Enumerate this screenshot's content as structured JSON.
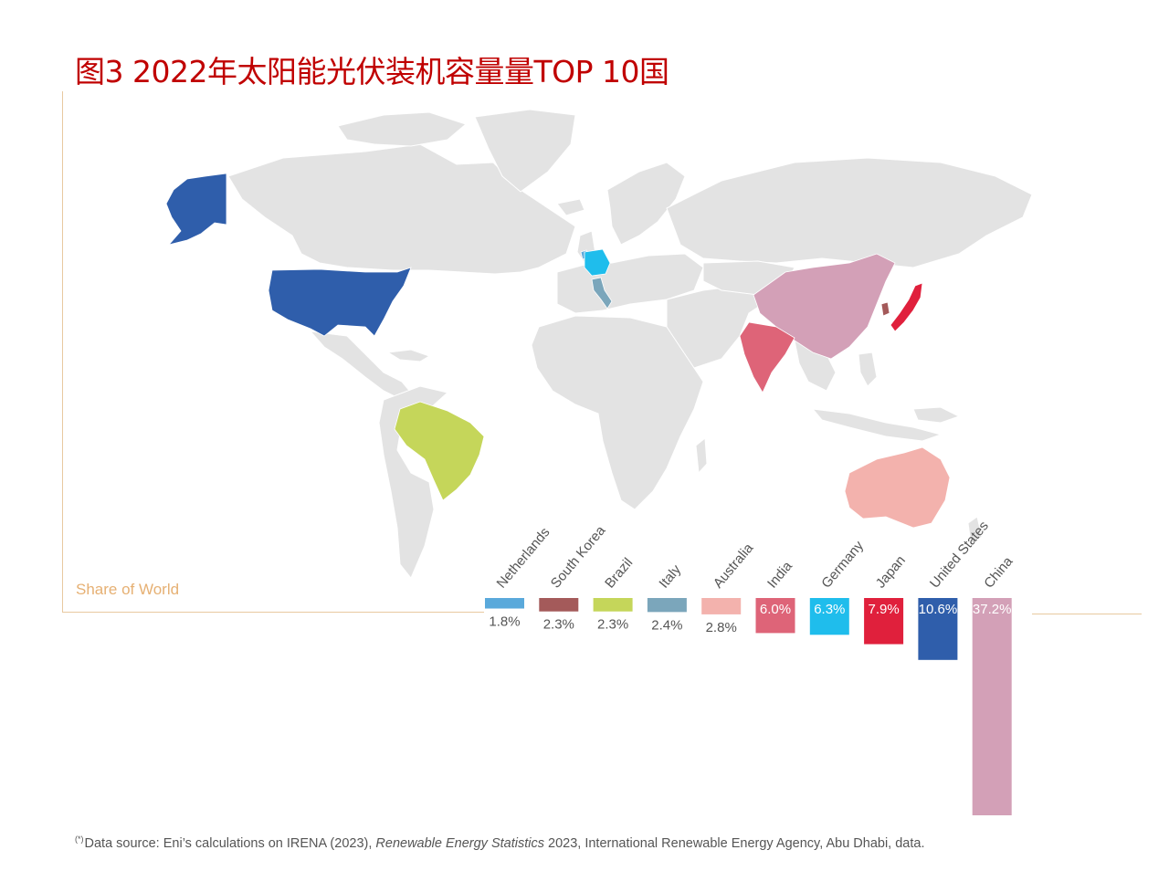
{
  "title": "图3  2022年太阳能光伏装机容量量TOP 10国",
  "share_label": "Share of World",
  "footnote": {
    "mark": "(*)",
    "before": "Data source: Eni’s calculations on IRENA (2023), ",
    "italic": "Renewable Energy Statistics",
    "after": " 2023, International Renewable Energy Agency, Abu Dhabi, data."
  },
  "colors": {
    "land": "#e3e3e3",
    "frame": "#e8c9a0",
    "title": "#c00000"
  },
  "chart_data": {
    "type": "bar",
    "title": "",
    "xlabel": "",
    "ylabel": "Share of World",
    "categories": [
      "Netherlands",
      "South Korea",
      "Brazil",
      "Italy",
      "Australia",
      "India",
      "Germany",
      "Japan",
      "United States",
      "China"
    ],
    "values": [
      1.8,
      2.3,
      2.3,
      2.4,
      2.8,
      6.0,
      6.3,
      7.9,
      10.6,
      37.2
    ],
    "value_labels": [
      "1.8%",
      "2.3%",
      "2.3%",
      "2.4%",
      "2.8%",
      "6.0%",
      "6.3%",
      "7.9%",
      "10.6%",
      "37.2%"
    ],
    "bar_colors": [
      "#5aa9db",
      "#a45a5a",
      "#c5d65a",
      "#7ba6bb",
      "#f3b2ad",
      "#de6478",
      "#1fbdec",
      "#e0203c",
      "#2f5eab",
      "#d3a0b7"
    ],
    "orientation": "vertical-down",
    "ylim": [
      0,
      37.2
    ],
    "legend": "none",
    "grid": false
  }
}
